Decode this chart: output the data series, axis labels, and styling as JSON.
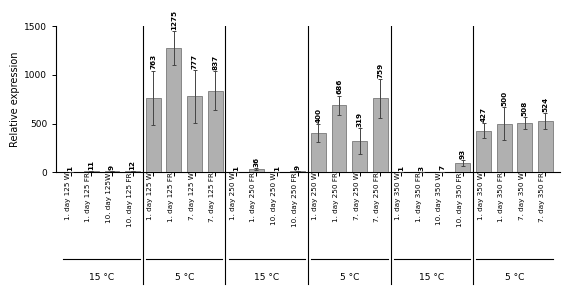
{
  "bar_values": [
    1,
    11,
    9,
    12,
    763,
    1275,
    777,
    837,
    1,
    36,
    1,
    9,
    400,
    686,
    319,
    759,
    1,
    3,
    7,
    93,
    427,
    500,
    508,
    524
  ],
  "bar_errors": [
    0,
    0,
    0,
    0,
    280,
    170,
    270,
    200,
    0,
    10,
    0,
    0,
    90,
    100,
    130,
    200,
    0,
    0,
    0,
    30,
    80,
    170,
    60,
    80
  ],
  "bar_color": "#b0b0b0",
  "bar_edgecolor": "#666666",
  "bar_width": 0.72,
  "ylim": [
    0,
    1500
  ],
  "yticks": [
    0,
    500,
    1000,
    1500
  ],
  "ylabel": "Relative expression",
  "ylabel_fontsize": 7,
  "tick_fontsize": 6.5,
  "label_fontsize": 5.2,
  "value_fontsize": 5.2,
  "section_fontsize": 6.5,
  "background_color": "#ffffff",
  "group_labels": [
    "1. day 125 W",
    "1. day 125 FR",
    "10. day 125W",
    "10. day 125 FR",
    "1. day 125 W",
    "1. day 125 FR",
    "7. day 125 W",
    "7. day 125 FR",
    "1. day 250 W",
    "1. day 250 FR",
    "10. day 250 W",
    "10. day 250 FR",
    "1. day 250 W",
    "1. day 250 FR",
    "7. day 250 W",
    "7. day 250 FR",
    "1. day 350 W",
    "1. day 350 FR",
    "10. day 350 W",
    "10. day 350 FR",
    "1. day 350 W",
    "1. day 350 FR",
    "7. day 350 W",
    "7. day 350 FR"
  ],
  "section_labels": [
    "15 °C",
    "5 °C",
    "15 °C",
    "5 °C",
    "15 °C",
    "5 °C"
  ],
  "section_centers": [
    1.5,
    5.5,
    9.5,
    13.5,
    17.5,
    21.5
  ],
  "divider_positions": [
    3.5,
    7.5,
    11.5,
    15.5,
    19.5
  ],
  "section_group_starts": [
    0,
    4,
    8,
    12,
    16,
    20
  ],
  "section_group_ends": [
    3,
    7,
    11,
    15,
    19,
    23
  ]
}
